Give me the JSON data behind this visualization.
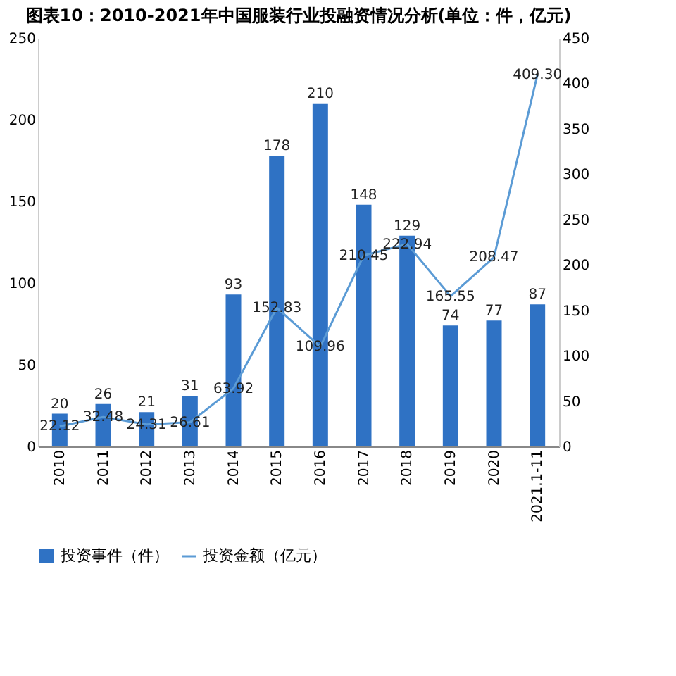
{
  "chart_data": {
    "type": "bar",
    "title": "图表10：2010-2021年中国服装行业投融资情况分析(单位：件，亿元)",
    "categories": [
      "2010",
      "2011",
      "2012",
      "2013",
      "2014",
      "2015",
      "2016",
      "2017",
      "2018",
      "2019",
      "2020",
      "2021.1-11"
    ],
    "series": [
      {
        "name": "投资事件（件）",
        "color": "#2f72c4",
        "values": [
          20,
          26,
          21,
          31,
          93,
          178,
          210,
          148,
          129,
          74,
          77,
          87
        ],
        "value_labels": [
          "20",
          "26",
          "21",
          "31",
          "93",
          "178",
          "210",
          "148",
          "129",
          "74",
          "77",
          "87"
        ]
      },
      {
        "name": "投资金额（亿元）",
        "type": "line",
        "axis": "y2",
        "color": "#5b9bd5",
        "values": [
          22.12,
          32.48,
          24.31,
          26.61,
          63.92,
          152.83,
          109.96,
          210.45,
          222.94,
          165.55,
          208.47,
          409.3
        ],
        "value_labels": [
          "22.12",
          "32.48",
          "24.31",
          "26.61",
          "63.92",
          "152.83",
          "109.96",
          "210.45",
          "222.94",
          "165.55",
          "208.47",
          "409.30"
        ]
      }
    ],
    "ylim": [
      0,
      250
    ],
    "yticks": [
      0,
      50,
      100,
      150,
      200,
      250
    ],
    "y2lim": [
      0,
      450
    ],
    "y2ticks": [
      0,
      50,
      100,
      150,
      200,
      250,
      300,
      350,
      400,
      450
    ],
    "legend": "bottom",
    "grid": false
  }
}
